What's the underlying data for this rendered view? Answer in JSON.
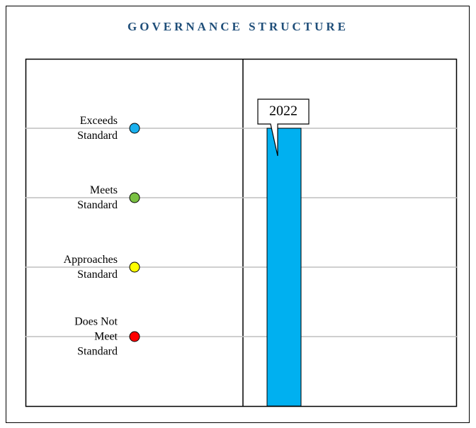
{
  "chart_data": {
    "type": "bar",
    "title": "GOVERNANCE STRUCTURE",
    "categories": [
      "2022"
    ],
    "values": [
      4
    ],
    "color": "#00b0f0",
    "ylim": [
      0,
      5
    ],
    "yticks": [
      {
        "value": 1,
        "label": "Does Not Meet Standard"
      },
      {
        "value": 2,
        "label": "Approaches Standard"
      },
      {
        "value": 3,
        "label": "Meets Standard"
      },
      {
        "value": 4,
        "label": "Exceeds Standard"
      }
    ],
    "ytick_colors": [
      "#ff0000",
      "#ffff00",
      "#7ac143",
      "#1ab0ee"
    ],
    "grid": true
  }
}
